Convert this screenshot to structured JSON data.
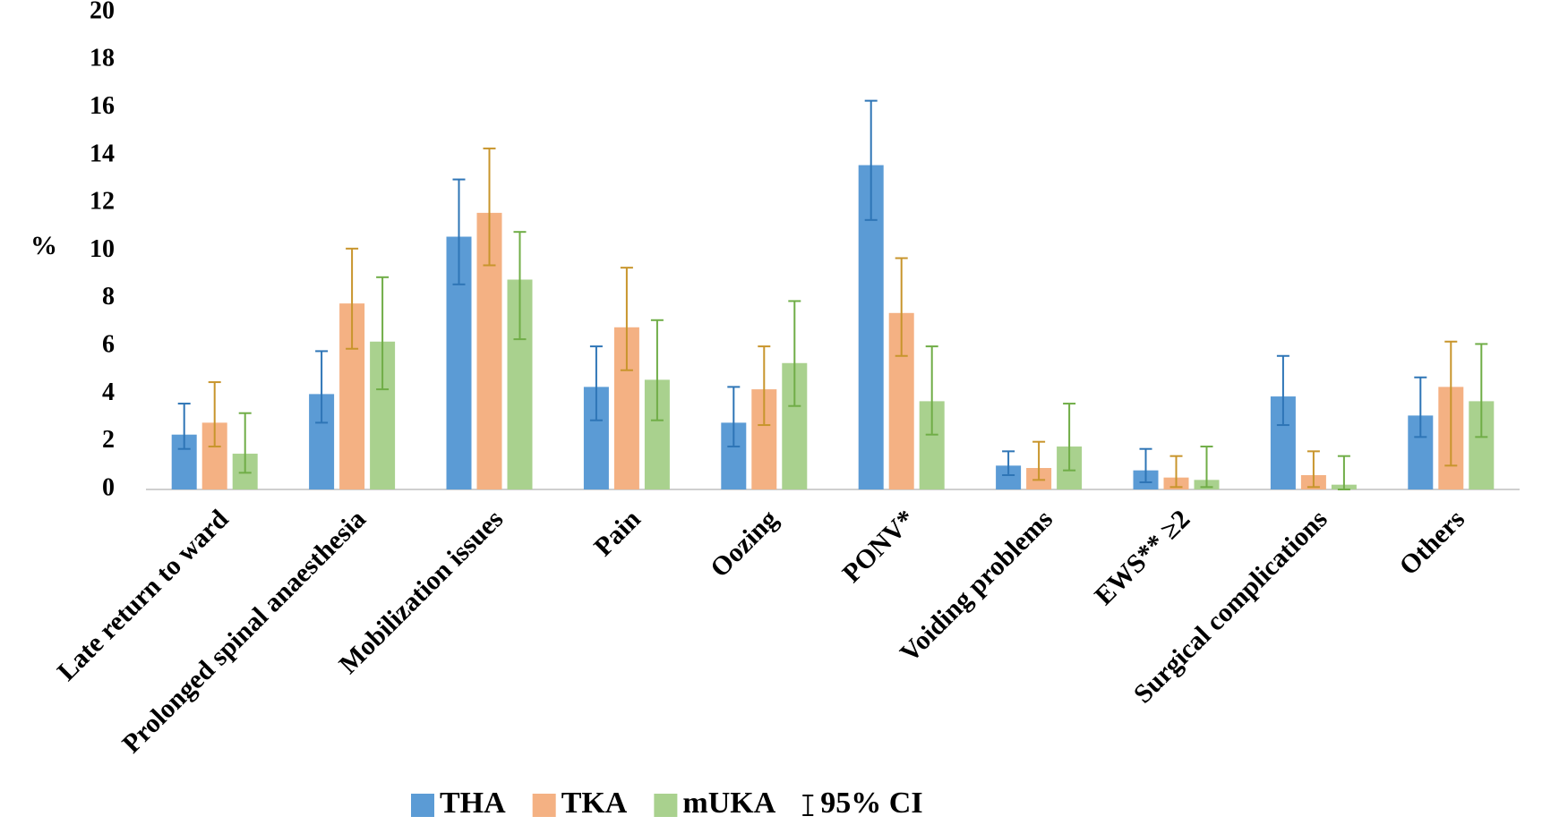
{
  "chart_data": {
    "type": "bar",
    "y_label": "%",
    "categories": [
      "Late return to ward",
      "Prolonged spinal anaesthesia",
      "Mobilization issues",
      "Pain",
      "Oozing",
      "PONV*",
      "Voiding problems",
      "EWS** ≥2",
      "Surgical complications",
      "Others"
    ],
    "series": [
      {
        "name": "THA",
        "color": "#5b9bd5",
        "error_color": "#2e75b6",
        "values": [
          2.3,
          4.0,
          10.6,
          4.3,
          2.8,
          13.6,
          1.0,
          0.8,
          3.9,
          3.1
        ],
        "ci_low": [
          1.7,
          2.8,
          8.6,
          2.9,
          1.8,
          11.3,
          0.6,
          0.3,
          2.7,
          2.2
        ],
        "ci_high": [
          3.6,
          5.8,
          13.0,
          6.0,
          4.3,
          16.3,
          1.6,
          1.7,
          5.6,
          4.7
        ]
      },
      {
        "name": "TKA",
        "color": "#f4b183",
        "error_color": "#c8952c",
        "values": [
          2.8,
          7.8,
          11.6,
          6.8,
          4.2,
          7.4,
          0.9,
          0.5,
          0.6,
          4.3
        ],
        "ci_low": [
          1.8,
          5.9,
          9.4,
          5.0,
          2.7,
          5.6,
          0.4,
          0.1,
          0.1,
          1.0
        ],
        "ci_high": [
          4.5,
          10.1,
          14.3,
          9.3,
          6.0,
          9.7,
          2.0,
          1.4,
          1.6,
          6.2
        ]
      },
      {
        "name": "mUKA",
        "color": "#a9d18e",
        "error_color": "#70ad47",
        "values": [
          1.5,
          6.2,
          8.8,
          4.6,
          5.3,
          3.7,
          1.8,
          0.4,
          0.2,
          3.7
        ],
        "ci_low": [
          0.7,
          4.2,
          6.3,
          2.9,
          3.5,
          2.3,
          0.8,
          0.1,
          0.0,
          2.2
        ],
        "ci_high": [
          3.2,
          8.9,
          10.8,
          7.1,
          7.9,
          6.0,
          3.6,
          1.8,
          1.4,
          6.1
        ]
      }
    ],
    "ci_label": "95% CI",
    "ylim": [
      0,
      20
    ],
    "yticks": [
      0,
      2,
      4,
      6,
      8,
      10,
      12,
      14,
      16,
      18,
      20
    ],
    "grid": false
  }
}
